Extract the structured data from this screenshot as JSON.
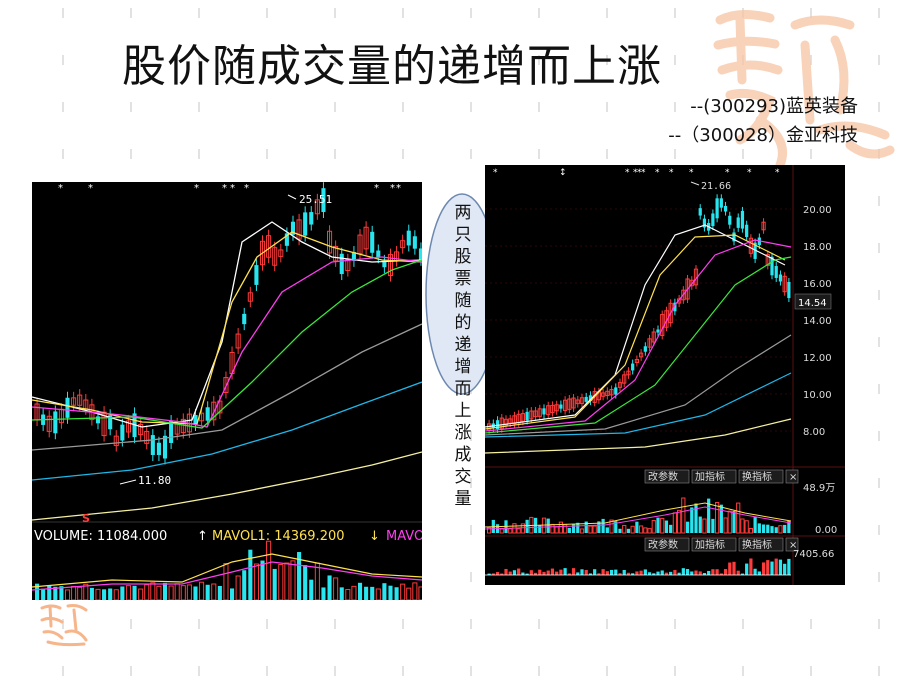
{
  "slide": {
    "title": "股价随成交量的递增而上涨",
    "stock_line_1": "--(300293)蓝英装备",
    "stock_line_2": "--（300028）金亚科技",
    "callout_chars": [
      "两只",
      "股票",
      "随的",
      "递增",
      "而上",
      "涨成",
      "交量"
    ]
  },
  "chart_data": [
    {
      "type": "candlestick",
      "annotations": {
        "high_label": "25.51",
        "low_label": "11.80",
        "s_marker": "S"
      },
      "volume_header": {
        "volume_label": "VOLUME: 11084.000",
        "mavol1_label": "MAVOL1: 14369.200",
        "mavol2_label": "MAVO"
      },
      "colors": {
        "up": "#ff3b3b",
        "down": "#27e6f0",
        "ma5": "#ffffff",
        "ma10": "#ffe14d",
        "ma20": "#ff3df0",
        "ma30": "#39e639",
        "ma60": "#9a9a9a",
        "ma120": "#1fb7e8",
        "ma250": "#f5f0a0"
      }
    },
    {
      "type": "candlestick",
      "y_ticks": [
        "20.00",
        "18.00",
        "16.00",
        "14.00",
        "12.00",
        "10.00",
        "8.00"
      ],
      "annotations": {
        "high_label": "21.66",
        "last_price": "14.54"
      },
      "volume_panel": {
        "buttons": [
          "改参数",
          "加指标",
          "换指标",
          "×"
        ],
        "max_label": "48.9万",
        "zero_label": "0.00"
      },
      "indicator_panel": {
        "buttons": [
          "改参数",
          "加指标",
          "换指标",
          "×"
        ],
        "value_label": "7405.66"
      },
      "colors": {
        "up": "#ff3b3b",
        "down": "#27e6f0"
      }
    }
  ],
  "colors": {
    "accent_red": "#ff3b3b",
    "accent_cyan": "#27e6f0",
    "deco": "#f6b58a"
  }
}
